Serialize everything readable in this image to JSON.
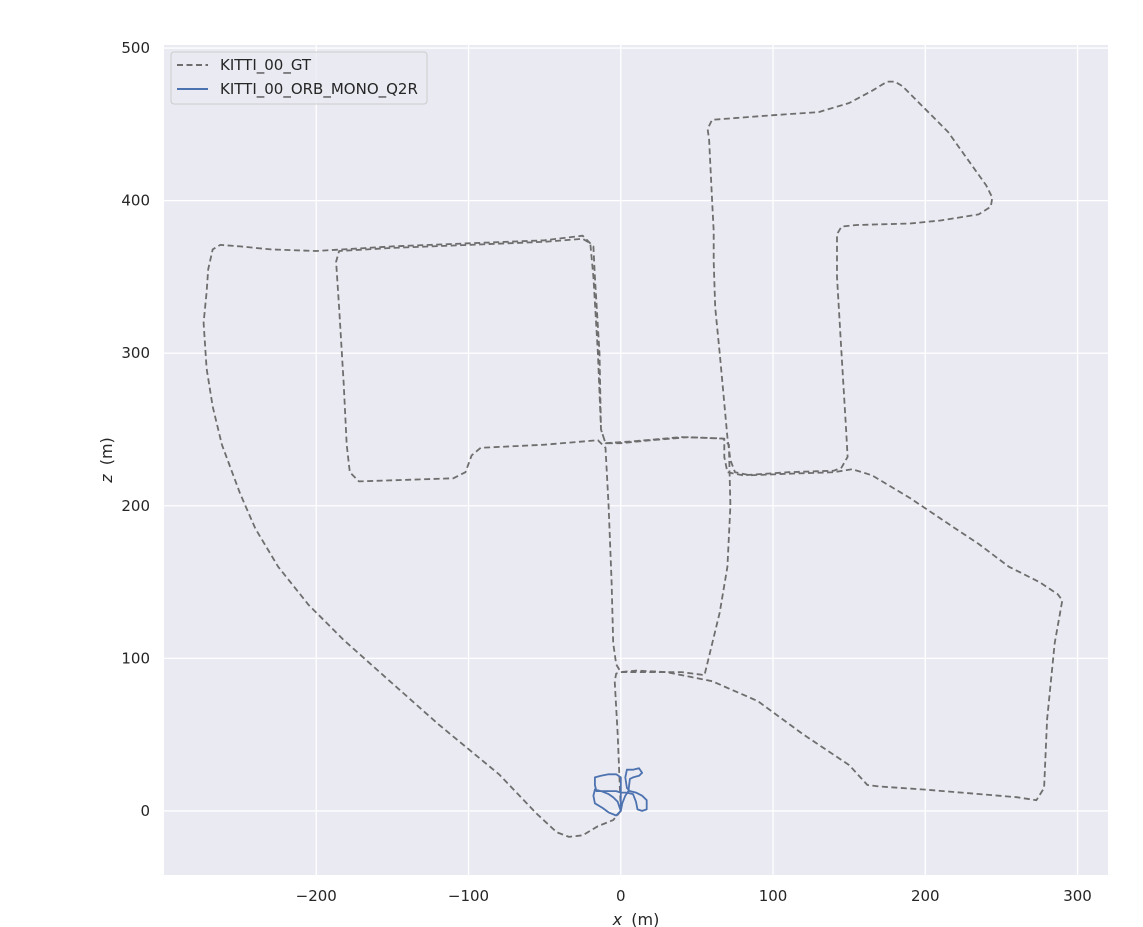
{
  "chart_data": {
    "type": "line",
    "title": "",
    "xlabel_var": "x",
    "xlabel_unit": "(m)",
    "ylabel_var": "z",
    "ylabel_unit": "(m)",
    "xlim": [
      -300,
      320
    ],
    "ylim": [
      -42,
      502
    ],
    "xticks": [
      -200,
      -100,
      0,
      100,
      200,
      300
    ],
    "yticks": [
      0,
      100,
      200,
      300,
      400,
      500
    ],
    "xtick_labels": [
      "−200",
      "−100",
      "0",
      "100",
      "200",
      "300"
    ],
    "ytick_labels": [
      "0",
      "100",
      "200",
      "300",
      "400",
      "500"
    ],
    "grid": true,
    "background": "#eaeaf2",
    "legend_position": "upper-left",
    "series": [
      {
        "name": "KITTI_00_GT",
        "color": "#6e6e6e",
        "style": "dashed",
        "points": [
          [
            0,
            0
          ],
          [
            -2,
            50
          ],
          [
            -4,
            85
          ],
          [
            -3,
            90
          ],
          [
            0,
            91
          ],
          [
            40,
            91
          ],
          [
            55,
            89
          ],
          [
            65,
            130
          ],
          [
            70,
            160
          ],
          [
            72,
            200
          ],
          [
            71,
            240
          ],
          [
            67,
            244
          ],
          [
            40,
            245
          ],
          [
            5,
            242
          ],
          [
            -10,
            241
          ],
          [
            -13,
            250
          ],
          [
            -15,
            300
          ],
          [
            -18,
            350
          ],
          [
            -20,
            372
          ],
          [
            -25,
            375
          ],
          [
            -50,
            373
          ],
          [
            -100,
            371
          ],
          [
            -150,
            369
          ],
          [
            -185,
            367
          ],
          [
            -187,
            360
          ],
          [
            -185,
            330
          ],
          [
            -182,
            280
          ],
          [
            -180,
            240
          ],
          [
            -178,
            222
          ],
          [
            -172,
            216
          ],
          [
            -140,
            217
          ],
          [
            -110,
            218
          ],
          [
            -102,
            222
          ],
          [
            -98,
            233
          ],
          [
            -92,
            238
          ],
          [
            -50,
            240
          ],
          [
            -15,
            243
          ],
          [
            -10,
            238
          ],
          [
            -8,
            200
          ],
          [
            -6,
            150
          ],
          [
            -5,
            110
          ],
          [
            -3,
            96
          ],
          [
            0,
            91
          ],
          [
            10,
            92
          ],
          [
            30,
            91
          ],
          [
            60,
            85
          ],
          [
            90,
            72
          ],
          [
            120,
            50
          ],
          [
            150,
            30
          ],
          [
            162,
            17
          ],
          [
            170,
            16
          ],
          [
            200,
            14
          ],
          [
            260,
            9
          ],
          [
            273,
            7
          ],
          [
            278,
            15
          ],
          [
            280,
            60
          ],
          [
            285,
            110
          ],
          [
            290,
            138
          ],
          [
            287,
            142
          ],
          [
            275,
            150
          ],
          [
            255,
            160
          ],
          [
            235,
            175
          ],
          [
            220,
            185
          ],
          [
            205,
            195
          ],
          [
            190,
            205
          ],
          [
            165,
            220
          ],
          [
            152,
            224
          ],
          [
            140,
            222
          ],
          [
            110,
            221
          ],
          [
            85,
            220
          ],
          [
            75,
            222
          ],
          [
            72,
            230
          ],
          [
            70,
            245
          ],
          [
            65,
            300
          ],
          [
            62,
            330
          ],
          [
            61,
            360
          ],
          [
            61,
            380
          ],
          [
            60,
            400
          ],
          [
            58,
            440
          ],
          [
            57,
            447
          ],
          [
            60,
            453
          ],
          [
            100,
            456
          ],
          [
            130,
            458
          ],
          [
            150,
            464
          ],
          [
            165,
            472
          ],
          [
            175,
            478
          ],
          [
            180,
            478
          ],
          [
            185,
            475
          ],
          [
            215,
            445
          ],
          [
            240,
            410
          ],
          [
            244,
            402
          ],
          [
            243,
            396
          ],
          [
            235,
            391
          ],
          [
            210,
            387
          ],
          [
            190,
            385
          ],
          [
            155,
            384
          ],
          [
            145,
            383
          ],
          [
            142,
            378
          ],
          [
            142,
            350
          ],
          [
            145,
            300
          ],
          [
            148,
            250
          ],
          [
            149,
            232
          ],
          [
            145,
            225
          ],
          [
            140,
            223
          ],
          [
            110,
            222
          ],
          [
            80,
            220
          ],
          [
            70,
            222
          ],
          [
            68,
            232
          ],
          [
            68,
            244
          ],
          [
            45,
            245
          ],
          [
            20,
            243
          ],
          [
            0,
            241
          ],
          [
            -10,
            241
          ],
          [
            -13,
            250
          ],
          [
            -14,
            300
          ],
          [
            -17,
            350
          ],
          [
            -18,
            370
          ],
          [
            -25,
            377
          ],
          [
            -50,
            374
          ],
          [
            -100,
            372
          ],
          [
            -150,
            370
          ],
          [
            -200,
            367
          ],
          [
            -230,
            368
          ],
          [
            -250,
            370
          ],
          [
            -263,
            371
          ],
          [
            -268,
            368
          ],
          [
            -271,
            355
          ],
          [
            -272,
            340
          ],
          [
            -274,
            320
          ],
          [
            -272,
            290
          ],
          [
            -268,
            265
          ],
          [
            -262,
            240
          ],
          [
            -250,
            208
          ],
          [
            -240,
            185
          ],
          [
            -225,
            160
          ],
          [
            -205,
            135
          ],
          [
            -182,
            112
          ],
          [
            -155,
            88
          ],
          [
            -120,
            57
          ],
          [
            -80,
            24
          ],
          [
            -55,
            -2
          ],
          [
            -42,
            -14
          ],
          [
            -34,
            -17
          ],
          [
            -25,
            -16
          ],
          [
            -15,
            -10
          ],
          [
            -5,
            -6
          ],
          [
            0,
            0
          ]
        ]
      },
      {
        "name": "KITTI_00_ORB_MONO_Q2R",
        "color": "#4c72b0",
        "style": "solid",
        "points": [
          [
            0,
            0
          ],
          [
            -2,
            6
          ],
          [
            -5,
            9
          ],
          [
            -8,
            11
          ],
          [
            -13,
            13
          ],
          [
            -17,
            14
          ],
          [
            -18,
            10
          ],
          [
            -17,
            5
          ],
          [
            -12,
            2
          ],
          [
            -8,
            -1
          ],
          [
            -3,
            -3
          ],
          [
            0,
            0
          ],
          [
            0,
            10
          ],
          [
            0,
            22
          ],
          [
            -3,
            24
          ],
          [
            -8,
            24
          ],
          [
            -13,
            23
          ],
          [
            -17,
            22
          ],
          [
            -17,
            17
          ],
          [
            -16,
            13
          ],
          [
            -12,
            13
          ],
          [
            -8,
            13
          ],
          [
            -3,
            13
          ],
          [
            0,
            12
          ],
          [
            4,
            12
          ],
          [
            8,
            11
          ],
          [
            10,
            6
          ],
          [
            11,
            1
          ],
          [
            14,
            0
          ],
          [
            17,
            1
          ],
          [
            17,
            7
          ],
          [
            14,
            10
          ],
          [
            10,
            12
          ],
          [
            6,
            13
          ],
          [
            4,
            15
          ],
          [
            3,
            22
          ],
          [
            4,
            27
          ],
          [
            8,
            27
          ],
          [
            12,
            28
          ],
          [
            14,
            25
          ],
          [
            12,
            23
          ],
          [
            8,
            22
          ],
          [
            6,
            21
          ],
          [
            5,
            13
          ],
          [
            3,
            10
          ],
          [
            1,
            5
          ],
          [
            0,
            0
          ]
        ]
      }
    ]
  }
}
